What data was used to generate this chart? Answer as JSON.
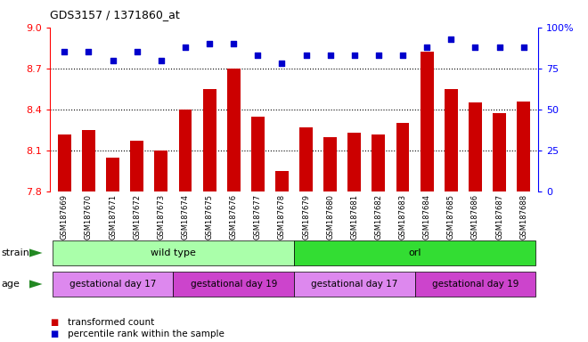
{
  "title": "GDS3157 / 1371860_at",
  "samples": [
    "GSM187669",
    "GSM187670",
    "GSM187671",
    "GSM187672",
    "GSM187673",
    "GSM187674",
    "GSM187675",
    "GSM187676",
    "GSM187677",
    "GSM187678",
    "GSM187679",
    "GSM187680",
    "GSM187681",
    "GSM187682",
    "GSM187683",
    "GSM187684",
    "GSM187685",
    "GSM187686",
    "GSM187687",
    "GSM187688"
  ],
  "bar_values": [
    8.22,
    8.25,
    8.05,
    8.17,
    8.1,
    8.4,
    8.55,
    8.7,
    8.35,
    7.95,
    8.27,
    8.2,
    8.23,
    8.22,
    8.3,
    8.82,
    8.55,
    8.45,
    8.37,
    8.46
  ],
  "dot_values": [
    85,
    85,
    80,
    85,
    80,
    88,
    90,
    90,
    83,
    78,
    83,
    83,
    83,
    83,
    83,
    88,
    93,
    88,
    88,
    88
  ],
  "ylim_left": [
    7.8,
    9.0
  ],
  "ylim_right": [
    0,
    100
  ],
  "yticks_left": [
    7.8,
    8.1,
    8.4,
    8.7,
    9.0
  ],
  "yticks_right": [
    0,
    25,
    50,
    75,
    100
  ],
  "bar_color": "#cc0000",
  "dot_color": "#0000cc",
  "grid_lines": [
    8.1,
    8.4,
    8.7
  ],
  "strain_groups": [
    {
      "label": "wild type",
      "start": 0,
      "end": 10,
      "color": "#aaffaa"
    },
    {
      "label": "orl",
      "start": 10,
      "end": 20,
      "color": "#33dd33"
    }
  ],
  "age_group_color1": "#dd88ee",
  "age_group_color2": "#cc44cc",
  "age_groups": [
    {
      "label": "gestational day 17",
      "start": 0,
      "end": 5
    },
    {
      "label": "gestational day 19",
      "start": 5,
      "end": 10
    },
    {
      "label": "gestational day 17",
      "start": 10,
      "end": 15
    },
    {
      "label": "gestational day 19",
      "start": 15,
      "end": 20
    }
  ],
  "legend_bar_label": "transformed count",
  "legend_dot_label": "percentile rank within the sample",
  "strain_label": "strain",
  "age_label": "age",
  "left_tick_color": "red",
  "right_tick_color": "blue",
  "bg_color": "#ffffff",
  "xlabel_bg": "#dddddd"
}
